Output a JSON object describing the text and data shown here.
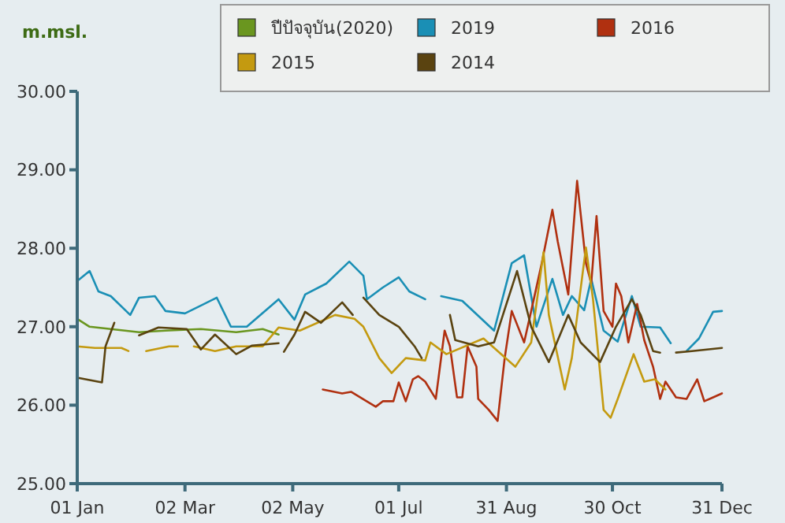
{
  "chart_data": {
    "type": "line",
    "ylabel": "m.msl.",
    "xlim": [
      "--01-01",
      "--12-31"
    ],
    "xticks": [
      {
        "value": "--01-01",
        "label": "01 Jan"
      },
      {
        "value": "--03-02",
        "label": "02 Mar"
      },
      {
        "value": "--05-02",
        "label": "02 May"
      },
      {
        "value": "--07-01",
        "label": "01 Jul"
      },
      {
        "value": "--08-31",
        "label": "31 Aug"
      },
      {
        "value": "--10-30",
        "label": "30 Oct"
      },
      {
        "value": "--12-31",
        "label": "31 Dec"
      }
    ],
    "ylim": [
      25,
      30
    ],
    "yticks": [
      {
        "value": 25,
        "label": "25.00"
      },
      {
        "value": 26,
        "label": "26.00"
      },
      {
        "value": 27,
        "label": "27.00"
      },
      {
        "value": 28,
        "label": "28.00"
      },
      {
        "value": 29,
        "label": "29.00"
      },
      {
        "value": 30,
        "label": "30.00"
      }
    ],
    "grid": false,
    "legend": "top right",
    "line_style": "solid",
    "marker": "none",
    "series": [
      {
        "name": "ปีปัจจุบัน(2020)",
        "color": "#6a961f",
        "x": [
          "--01-01",
          "--01-08",
          "--01-20",
          "--02-05",
          "--02-20",
          "--03-11",
          "--03-31",
          "--04-15",
          "--04-24"
        ],
        "values": [
          27.1,
          27.0,
          26.97,
          26.93,
          26.95,
          26.97,
          26.93,
          26.97,
          26.9
        ]
      },
      {
        "name": "2019",
        "color": "#1a8fb5",
        "x": [
          "--01-02",
          "--01-08",
          "--01-13",
          "--01-20",
          "--01-31",
          "--02-05",
          "--02-14",
          "--02-20",
          "--03-02",
          "--03-20",
          "--03-28",
          "--04-06",
          "--04-24",
          "--05-03",
          "--05-09",
          "--05-21",
          "--06-03",
          "--06-11",
          "--06-13",
          "--06-22",
          "--07-01",
          "--07-07",
          "--07-16",
          "--07-19",
          "--07-25",
          "--08-06",
          "--08-24",
          "--09-03",
          "--09-10",
          "--09-17",
          "--09-26",
          "--10-02",
          "--10-07",
          "--10-14",
          "--10-18",
          "--10-25",
          "--11-02",
          "--11-10",
          "--11-15",
          "--11-26",
          "--12-02",
          "--12-05",
          "--12-11",
          "--12-18",
          "--12-26",
          "--12-31"
        ],
        "values": [
          27.6,
          27.71,
          27.45,
          27.39,
          27.15,
          27.37,
          27.39,
          27.2,
          27.17,
          27.37,
          27.0,
          27.0,
          27.35,
          27.09,
          27.41,
          27.55,
          27.83,
          27.65,
          27.35,
          27.5,
          27.63,
          27.45,
          27.35,
          null,
          27.39,
          27.33,
          26.95,
          27.81,
          27.91,
          27.0,
          27.61,
          27.15,
          27.39,
          27.21,
          27.61,
          26.95,
          26.81,
          27.39,
          27.0,
          26.99,
          26.79,
          null,
          26.69,
          26.85,
          27.19,
          27.2
        ]
      },
      {
        "name": "2016",
        "color": "#b03010",
        "x": [
          "--05-19",
          "--05-30",
          "--06-04",
          "--06-18",
          "--06-22",
          "--06-28",
          "--07-01",
          "--07-05",
          "--07-09",
          "--07-12",
          "--07-16",
          "--07-22",
          "--07-27",
          "--07-30",
          "--08-03",
          "--08-06",
          "--08-09",
          "--08-14",
          "--08-15",
          "--08-21",
          "--08-26",
          "--08-30",
          "--09-03",
          "--09-10",
          "--09-14",
          "--09-20",
          "--09-26",
          "--09-29",
          "--10-05",
          "--10-10",
          "--10-15",
          "--10-18",
          "--10-21",
          "--10-25",
          "--10-30",
          "--11-01",
          "--11-04",
          "--11-08",
          "--11-13",
          "--11-17",
          "--11-22",
          "--11-26",
          "--11-29",
          "--12-05",
          "--12-11",
          "--12-17",
          "--12-21",
          "--12-26",
          "--12-31"
        ],
        "values": [
          26.2,
          26.15,
          26.17,
          25.98,
          26.05,
          26.05,
          26.29,
          26.05,
          26.33,
          26.37,
          26.3,
          26.08,
          26.95,
          26.75,
          26.1,
          26.1,
          26.75,
          26.49,
          26.08,
          25.94,
          25.8,
          26.6,
          27.2,
          26.8,
          27.2,
          27.81,
          28.49,
          28.09,
          27.41,
          28.86,
          27.81,
          27.55,
          28.41,
          27.2,
          27.0,
          27.55,
          27.39,
          26.8,
          27.29,
          26.83,
          26.49,
          26.08,
          26.3,
          26.1,
          26.08,
          26.33,
          26.05,
          26.1,
          26.15
        ]
      },
      {
        "name": "2015",
        "color": "#c49a10",
        "x": [
          "--01-01",
          "--01-11",
          "--01-26",
          "--01-30",
          "--02-05",
          "--02-09",
          "--02-22",
          "--02-27",
          "--03-03",
          "--03-07",
          "--03-19",
          "--03-31",
          "--04-15",
          "--04-24",
          "--05-06",
          "--05-26",
          "--06-06",
          "--06-11",
          "--06-20",
          "--06-27",
          "--07-05",
          "--07-16",
          "--07-19",
          "--07-28",
          "--08-18",
          "--09-05",
          "--09-14",
          "--09-21",
          "--09-24",
          "--10-03",
          "--10-07",
          "--10-15",
          "--10-19",
          "--10-25",
          "--10-29",
          "--11-02",
          "--11-11",
          "--11-17",
          "--11-23",
          "--11-29"
        ],
        "values": [
          26.75,
          26.73,
          26.73,
          26.69,
          null,
          26.69,
          26.75,
          26.75,
          null,
          26.75,
          26.69,
          26.75,
          26.75,
          26.99,
          26.95,
          27.15,
          27.1,
          27.0,
          26.6,
          26.41,
          26.6,
          26.57,
          26.8,
          26.65,
          26.85,
          26.49,
          26.8,
          27.95,
          27.15,
          26.2,
          26.6,
          28.01,
          27.35,
          25.94,
          25.84,
          26.08,
          26.65,
          26.3,
          26.33,
          26.2
        ]
      },
      {
        "name": "2014",
        "color": "#5a4310",
        "x": [
          "--01-01",
          "--01-15",
          "--01-17",
          "--01-22",
          "--01-31",
          "--02-05",
          "--02-16",
          "--03-03",
          "--03-11",
          "--03-19",
          "--03-31",
          "--04-09",
          "--04-24",
          "--04-26",
          "--04-27",
          "--05-03",
          "--05-09",
          "--05-18",
          "--05-30",
          "--06-05",
          "--06-08",
          "--06-11",
          "--06-20",
          "--07-01",
          "--07-10",
          "--07-14",
          "--07-22",
          "--07-30",
          "--08-02",
          "--08-15",
          "--08-24",
          "--09-06",
          "--09-14",
          "--09-24",
          "--10-05",
          "--10-12",
          "--10-23",
          "--11-01",
          "--11-10",
          "--11-15",
          "--11-22",
          "--11-26",
          "--12-01",
          "--12-05",
          "--12-14",
          "--12-31"
        ],
        "values": [
          26.35,
          26.29,
          26.75,
          27.05,
          null,
          26.89,
          26.99,
          26.97,
          26.71,
          26.9,
          26.65,
          26.76,
          26.79,
          null,
          26.68,
          26.9,
          27.19,
          27.05,
          27.31,
          27.15,
          null,
          27.37,
          27.15,
          27.0,
          26.75,
          26.6,
          null,
          27.15,
          26.83,
          26.75,
          26.8,
          27.71,
          27.0,
          26.55,
          27.15,
          26.8,
          26.55,
          27.0,
          27.35,
          27.15,
          26.69,
          26.67,
          null,
          26.67,
          26.69,
          26.73
        ]
      }
    ]
  }
}
